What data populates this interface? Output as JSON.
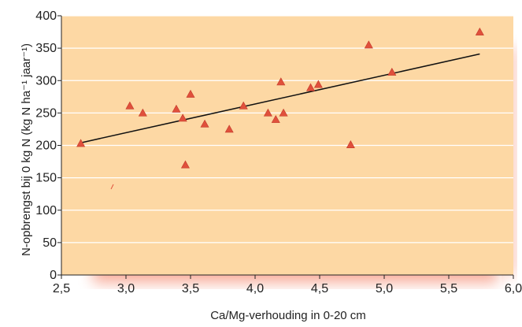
{
  "chart_data": {
    "type": "scatter",
    "title": "",
    "xlabel": "Ca/Mg-verhouding in 0-20 cm",
    "ylabel": "N-opbrengst bij 0 kg N (kg N ha⁻¹ jaar⁻¹)",
    "xlim": [
      2.5,
      6.0
    ],
    "ylim": [
      0,
      400
    ],
    "xticks": [
      "2,5",
      "3,0",
      "3,5",
      "4,0",
      "4,5",
      "5,0",
      "5,5",
      "6,0"
    ],
    "yticks": [
      "0",
      "50",
      "100",
      "150",
      "200",
      "250",
      "300",
      "350",
      "400"
    ],
    "grid": "horizontal",
    "colors": {
      "background": "#fdd8a4",
      "marker": "#e0503c",
      "trendline": "#111111",
      "gridline": "#ffffff"
    },
    "series": [
      {
        "points": [
          [
            2.65,
            203
          ],
          [
            3.03,
            261
          ],
          [
            3.13,
            250
          ],
          [
            3.39,
            256
          ],
          [
            3.44,
            242
          ],
          [
            3.46,
            170
          ],
          [
            3.5,
            279
          ],
          [
            3.61,
            233
          ],
          [
            3.8,
            225
          ],
          [
            3.91,
            261
          ],
          [
            4.1,
            250
          ],
          [
            4.16,
            240
          ],
          [
            4.2,
            298
          ],
          [
            4.22,
            250
          ],
          [
            4.43,
            289
          ],
          [
            4.49,
            294
          ],
          [
            4.74,
            201
          ],
          [
            4.88,
            355
          ],
          [
            5.06,
            313
          ],
          [
            5.74,
            375
          ]
        ]
      }
    ],
    "trendline": {
      "x": [
        2.65,
        5.74
      ],
      "y": [
        204,
        341
      ]
    }
  }
}
